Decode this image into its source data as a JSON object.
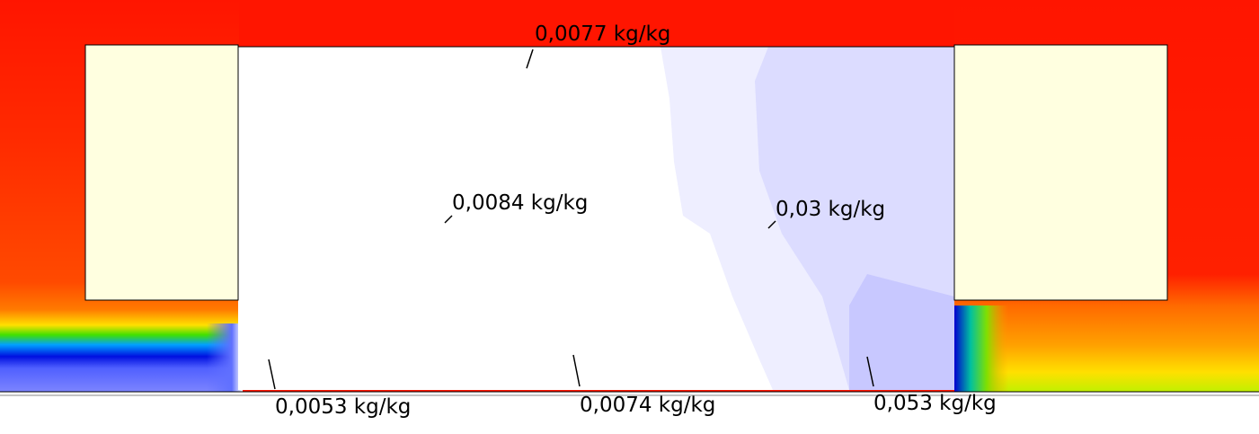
{
  "annotations": [
    "0,0077 kg/kg",
    "0,0084 kg/kg",
    "0,03 kg/kg",
    "0,0053 kg/kg",
    "0,0074 kg/kg",
    "0,053 kg/kg"
  ]
}
